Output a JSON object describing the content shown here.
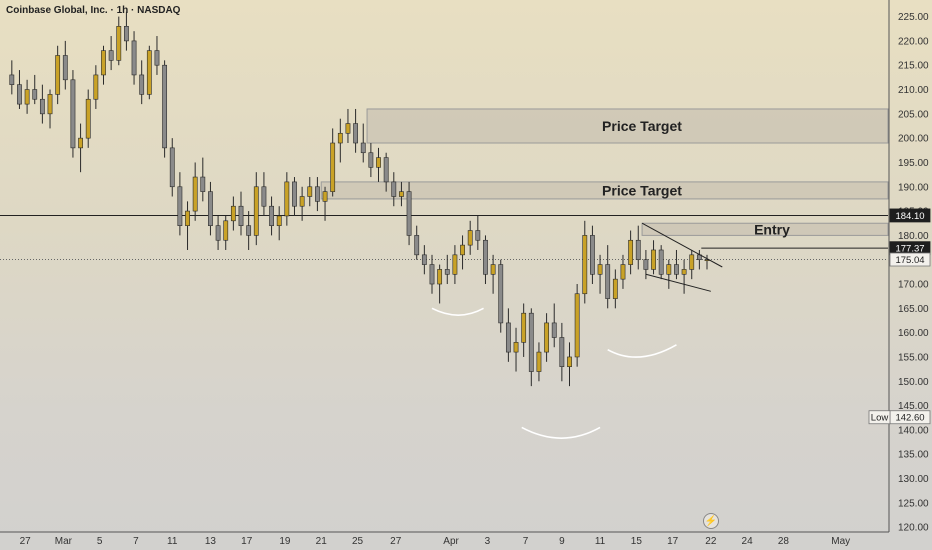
{
  "header": {
    "title": "Coinbase Global, Inc. · 1h · NASDAQ"
  },
  "colors": {
    "up": "#c9a227",
    "down": "#8a8a8a",
    "zone_fill": "#c9c2b2",
    "zone_stroke": "#9a9a9a"
  },
  "icons": {
    "replay": "lightning-bolt-icon"
  },
  "chart_data": {
    "type": "candlestick",
    "symbol": "Coinbase Global, Inc.",
    "interval": "1h",
    "exchange": "NASDAQ",
    "ylim": [
      119,
      228
    ],
    "yticks": [
      120,
      125,
      130,
      135,
      140,
      145,
      150,
      155,
      160,
      165,
      170,
      175,
      180,
      185,
      190,
      195,
      200,
      205,
      210,
      215,
      220,
      225
    ],
    "xticks": [
      {
        "label": "27",
        "pos": 0.9
      },
      {
        "label": "Mar",
        "pos": 2.9
      },
      {
        "label": "5",
        "pos": 4.8
      },
      {
        "label": "7",
        "pos": 6.7
      },
      {
        "label": "11",
        "pos": 8.6
      },
      {
        "label": "13",
        "pos": 10.6
      },
      {
        "label": "17",
        "pos": 12.5
      },
      {
        "label": "19",
        "pos": 14.5
      },
      {
        "label": "21",
        "pos": 16.4
      },
      {
        "label": "25",
        "pos": 18.3
      },
      {
        "label": "27",
        "pos": 20.3
      },
      {
        "label": "Apr",
        "pos": 23.2
      },
      {
        "label": "3",
        "pos": 25.1
      },
      {
        "label": "7",
        "pos": 27.1
      },
      {
        "label": "9",
        "pos": 29.0
      },
      {
        "label": "11",
        "pos": 31.0
      },
      {
        "label": "15",
        "pos": 32.9
      },
      {
        "label": "17",
        "pos": 34.8
      },
      {
        "label": "22",
        "pos": 36.8
      },
      {
        "label": "24",
        "pos": 38.7
      },
      {
        "label": "28",
        "pos": 40.6
      },
      {
        "label": "May",
        "pos": 43.6
      }
    ],
    "x_domain": [
      0,
      45.8
    ],
    "candles": [
      [
        0.2,
        213,
        216,
        209,
        211
      ],
      [
        0.6,
        211,
        214,
        206,
        207
      ],
      [
        1.0,
        207,
        212,
        205,
        210
      ],
      [
        1.4,
        210,
        213,
        207,
        208
      ],
      [
        1.8,
        208,
        211,
        203,
        205
      ],
      [
        2.2,
        205,
        210,
        202,
        209
      ],
      [
        2.6,
        209,
        219,
        207,
        217
      ],
      [
        3.0,
        217,
        220,
        210,
        212
      ],
      [
        3.4,
        212,
        214,
        196,
        198
      ],
      [
        3.8,
        198,
        203,
        193,
        200
      ],
      [
        4.2,
        200,
        210,
        198,
        208
      ],
      [
        4.6,
        208,
        215,
        206,
        213
      ],
      [
        5.0,
        213,
        219,
        211,
        218
      ],
      [
        5.4,
        218,
        221,
        214,
        216
      ],
      [
        5.8,
        216,
        225,
        215,
        223
      ],
      [
        6.2,
        223,
        226,
        218,
        220
      ],
      [
        6.6,
        220,
        222,
        211,
        213
      ],
      [
        7.0,
        213,
        216,
        207,
        209
      ],
      [
        7.4,
        209,
        219,
        208,
        218
      ],
      [
        7.8,
        218,
        221,
        213,
        215
      ],
      [
        8.2,
        215,
        216,
        196,
        198
      ],
      [
        8.6,
        198,
        200,
        188,
        190
      ],
      [
        9.0,
        190,
        193,
        180,
        182
      ],
      [
        9.4,
        182,
        187,
        177,
        185
      ],
      [
        9.8,
        185,
        195,
        183,
        192
      ],
      [
        10.2,
        192,
        196,
        187,
        189
      ],
      [
        10.6,
        189,
        191,
        180,
        182
      ],
      [
        11.0,
        182,
        184,
        177,
        179
      ],
      [
        11.4,
        179,
        184,
        177,
        183
      ],
      [
        11.8,
        183,
        188,
        181,
        186
      ],
      [
        12.2,
        186,
        189,
        180,
        182
      ],
      [
        12.6,
        182,
        185,
        177,
        180
      ],
      [
        13.0,
        180,
        193,
        178,
        190
      ],
      [
        13.4,
        190,
        193,
        184,
        186
      ],
      [
        13.8,
        186,
        188,
        180,
        182
      ],
      [
        14.2,
        182,
        186,
        179,
        184
      ],
      [
        14.6,
        184,
        193,
        182,
        191
      ],
      [
        15.0,
        191,
        192,
        184,
        186
      ],
      [
        15.4,
        186,
        190,
        183,
        188
      ],
      [
        15.8,
        188,
        192,
        186,
        190
      ],
      [
        16.2,
        190,
        192,
        185,
        187
      ],
      [
        16.6,
        187,
        190,
        183,
        189
      ],
      [
        17.0,
        189,
        202,
        188,
        199
      ],
      [
        17.4,
        199,
        204,
        195,
        201
      ],
      [
        17.8,
        201,
        206,
        199,
        203
      ],
      [
        18.2,
        203,
        206,
        197,
        199
      ],
      [
        18.6,
        199,
        203,
        195,
        197
      ],
      [
        19.0,
        197,
        199,
        192,
        194
      ],
      [
        19.4,
        194,
        198,
        191,
        196
      ],
      [
        19.8,
        196,
        197,
        189,
        191
      ],
      [
        20.2,
        191,
        193,
        186,
        188
      ],
      [
        20.6,
        188,
        191,
        186,
        189
      ],
      [
        21.0,
        189,
        191,
        178,
        180
      ],
      [
        21.4,
        180,
        182,
        175,
        176
      ],
      [
        21.8,
        176,
        178,
        172,
        174
      ],
      [
        22.2,
        174,
        176,
        168,
        170
      ],
      [
        22.6,
        170,
        174,
        166,
        173
      ],
      [
        23.0,
        173,
        176,
        170,
        172
      ],
      [
        23.4,
        172,
        178,
        170,
        176
      ],
      [
        23.8,
        176,
        180,
        173,
        178
      ],
      [
        24.2,
        178,
        183,
        176,
        181
      ],
      [
        24.6,
        181,
        184,
        177,
        179
      ],
      [
        25.0,
        179,
        180,
        170,
        172
      ],
      [
        25.4,
        172,
        176,
        168,
        174
      ],
      [
        25.8,
        174,
        175,
        160,
        162
      ],
      [
        26.2,
        162,
        165,
        154,
        156
      ],
      [
        26.6,
        156,
        161,
        152,
        158
      ],
      [
        27.0,
        158,
        166,
        155,
        164
      ],
      [
        27.4,
        164,
        165,
        149,
        152
      ],
      [
        27.8,
        152,
        158,
        150,
        156
      ],
      [
        28.2,
        156,
        164,
        154,
        162
      ],
      [
        28.6,
        162,
        166,
        157,
        159
      ],
      [
        29.0,
        159,
        162,
        150,
        153
      ],
      [
        29.4,
        153,
        158,
        149,
        155
      ],
      [
        29.8,
        155,
        170,
        153,
        168
      ],
      [
        30.2,
        168,
        183,
        166,
        180
      ],
      [
        30.6,
        180,
        182,
        170,
        172
      ],
      [
        31.0,
        172,
        176,
        168,
        174
      ],
      [
        31.4,
        174,
        178,
        165,
        167
      ],
      [
        31.8,
        167,
        173,
        165,
        171
      ],
      [
        32.2,
        171,
        176,
        169,
        174
      ],
      [
        32.6,
        174,
        181,
        172,
        179
      ],
      [
        33.0,
        179,
        182,
        173,
        175
      ],
      [
        33.4,
        175,
        177,
        171,
        173
      ],
      [
        33.8,
        173,
        179,
        172,
        177
      ],
      [
        34.2,
        177,
        178,
        171,
        172
      ],
      [
        34.6,
        172,
        175,
        169,
        174
      ],
      [
        35.0,
        174,
        177,
        171,
        172
      ],
      [
        35.4,
        172,
        175,
        168,
        173
      ],
      [
        35.8,
        173,
        177,
        171,
        176
      ],
      [
        36.2,
        176,
        177,
        173,
        175
      ],
      [
        36.6,
        175,
        176,
        173,
        175
      ]
    ],
    "zones": [
      {
        "label": "Price Target",
        "y1": 199,
        "y2": 206,
        "x_start": 18.8
      },
      {
        "label": "Price Target",
        "y1": 187.5,
        "y2": 191,
        "x_start": 16.4
      },
      {
        "label": "Entry",
        "y1": 180,
        "y2": 182.5,
        "x_start": 33.2
      }
    ],
    "hlines": [
      {
        "value": 184.1,
        "style": "solid"
      },
      {
        "value": 175.04,
        "style": "dotted"
      },
      {
        "value": 177.37,
        "style": "solid",
        "x_start": 36.3
      }
    ],
    "price_labels": [
      {
        "value": "184.10",
        "y": 184.1,
        "style": "dark"
      },
      {
        "value": "177.37",
        "y": 177.37,
        "style": "dark"
      },
      {
        "value": "175.04",
        "y": 175.04,
        "style": "light"
      },
      {
        "value": "142.60",
        "y": 142.6,
        "style": "light",
        "tag": "Low"
      }
    ],
    "trendlines": [
      {
        "x1": 33.2,
        "y1": 182.5,
        "x2": 37.4,
        "y2": 173.5
      },
      {
        "x1": 33.4,
        "y1": 172.0,
        "x2": 36.8,
        "y2": 168.5
      }
    ],
    "arcs": [
      {
        "x1": 22.2,
        "y1": 165.0,
        "xm": 23.6,
        "ym": 163.6,
        "x2": 24.9,
        "y2": 165.0
      },
      {
        "x1": 26.9,
        "y1": 140.5,
        "xm": 29.0,
        "ym": 138.3,
        "x2": 31.0,
        "y2": 140.5
      },
      {
        "x1": 31.4,
        "y1": 156.5,
        "xm": 33.0,
        "ym": 155.0,
        "x2": 35.0,
        "y2": 157.5
      }
    ]
  }
}
